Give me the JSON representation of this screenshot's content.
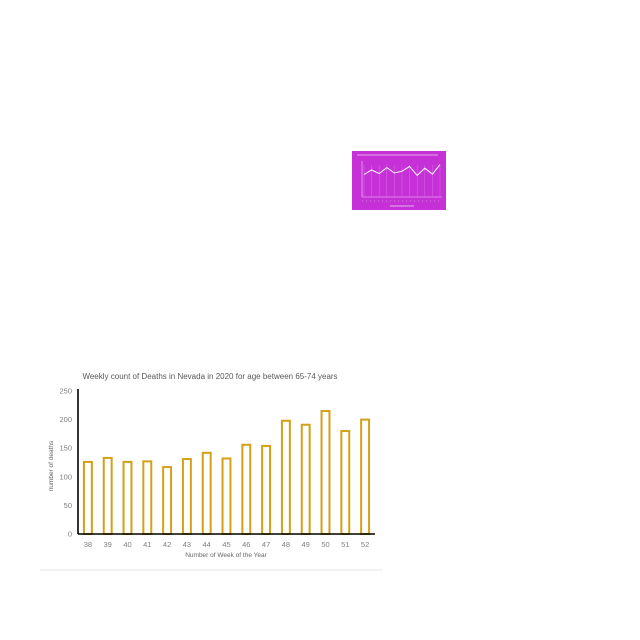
{
  "chart_data": [
    {
      "type": "bar",
      "title": "Weekly count of Deaths in Nevada in 2020 for age between 65-74 years",
      "xlabel": "Number of Week of the Year",
      "ylabel": "number of deaths",
      "categories": [
        "38",
        "39",
        "40",
        "41",
        "42",
        "43",
        "44",
        "45",
        "46",
        "47",
        "48",
        "49",
        "50",
        "51",
        "52"
      ],
      "values": [
        126,
        133,
        126,
        127,
        117,
        131,
        142,
        132,
        156,
        154,
        198,
        191,
        215,
        180,
        200
      ],
      "ylim": [
        0,
        250
      ],
      "yticks": [
        "0",
        "50",
        "100",
        "150",
        "200",
        "250"
      ],
      "bar_color": "#d4a017",
      "grid": false
    },
    {
      "type": "line",
      "background_color": "#c531d6",
      "line_color": "#ffffff",
      "values": [
        0.55,
        0.7,
        0.58,
        0.78,
        0.6,
        0.66,
        0.82,
        0.52,
        0.76,
        0.56,
        0.88
      ]
    }
  ]
}
